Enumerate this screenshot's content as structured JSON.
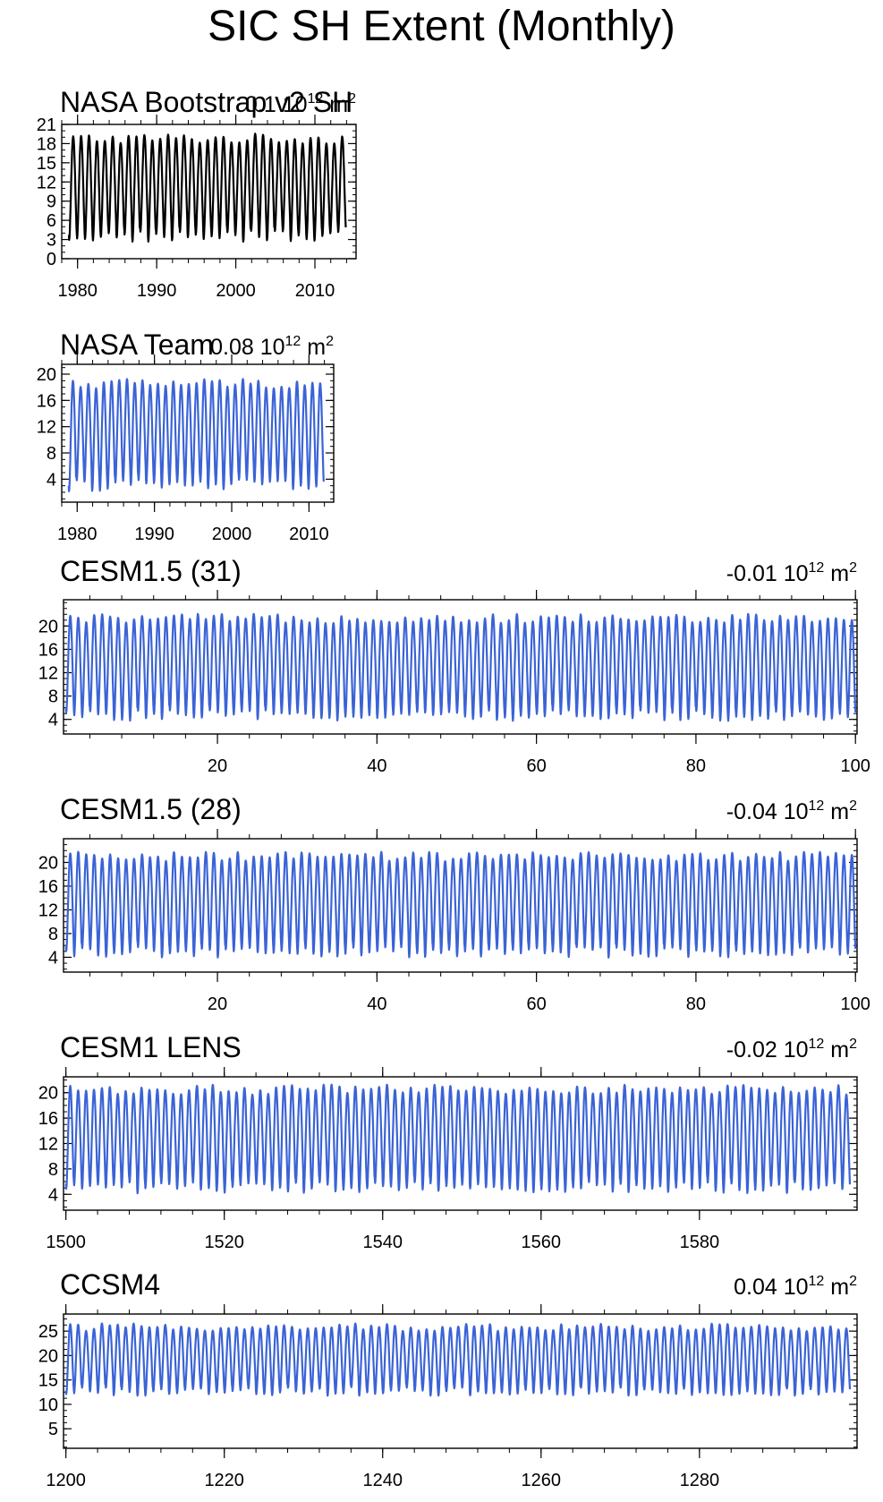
{
  "figure": {
    "title": "SIC SH Extent (Monthly)"
  },
  "chart_data": [
    {
      "type": "line",
      "title": "NASA Bootstrap v2 SH",
      "trend_value": "0.1",
      "trend_unit_base": "10",
      "trend_unit_exp": "12",
      "trend_unit_suffix": "m",
      "trend_unit_suffix_exp": "2",
      "color": "#000000",
      "xlim": [
        1978.0,
        2015.2
      ],
      "xticks": [
        1980,
        1990,
        2000,
        2010
      ],
      "ylim": [
        0,
        21
      ],
      "yticks": [
        0,
        3,
        6,
        9,
        12,
        15,
        18,
        21
      ],
      "series": [
        {
          "x_start": 1978.9,
          "years": 35,
          "max_mean": 18.8,
          "min_mean": 3.4
        }
      ]
    },
    {
      "type": "line",
      "title": "NASA Team",
      "trend_value": "0.08",
      "trend_unit_base": "10",
      "trend_unit_exp": "12",
      "trend_unit_suffix": "m",
      "trend_unit_suffix_exp": "2",
      "color": "#3b63d6",
      "xlim": [
        1978.0,
        2013.2
      ],
      "xticks": [
        1980,
        1990,
        2000,
        2010
      ],
      "ylim": [
        0.5,
        21.5
      ],
      "yticks": [
        4,
        8,
        12,
        16,
        20
      ],
      "series": [
        {
          "x_start": 1978.9,
          "years": 33,
          "max_mean": 18.6,
          "min_mean": 3.0
        }
      ]
    },
    {
      "type": "line",
      "title": "CESM1.5 (31)",
      "trend_value": "-0.01",
      "trend_unit_base": "10",
      "trend_unit_exp": "12",
      "trend_unit_suffix": "m",
      "trend_unit_suffix_exp": "2",
      "color": "#3b63d6",
      "xlim": [
        0.7,
        100.2
      ],
      "xticks": [
        20,
        40,
        60,
        80,
        100
      ],
      "ylim": [
        1.5,
        24.5
      ],
      "yticks": [
        4,
        8,
        12,
        16,
        20
      ],
      "series": [
        {
          "x_start": 1,
          "years": 99,
          "max_mean": 21.3,
          "min_mean": 4.6
        }
      ]
    },
    {
      "type": "line",
      "title": "CESM1.5 (28)",
      "trend_value": "-0.04",
      "trend_unit_base": "10",
      "trend_unit_exp": "12",
      "trend_unit_suffix": "m",
      "trend_unit_suffix_exp": "2",
      "color": "#3b63d6",
      "xlim": [
        0.7,
        100.2
      ],
      "xticks": [
        20,
        40,
        60,
        80,
        100
      ],
      "ylim": [
        1.5,
        24.0
      ],
      "yticks": [
        4,
        8,
        12,
        16,
        20
      ],
      "series": [
        {
          "x_start": 1,
          "years": 99,
          "max_mean": 21.0,
          "min_mean": 4.8
        }
      ]
    },
    {
      "type": "line",
      "title": "CESM1 LENS",
      "trend_value": "-0.02",
      "trend_unit_base": "10",
      "trend_unit_exp": "12",
      "trend_unit_suffix": "m",
      "trend_unit_suffix_exp": "2",
      "color": "#3b63d6",
      "xlim": [
        1499.7,
        1599.9
      ],
      "xticks": [
        1500,
        1520,
        1540,
        1560,
        1580
      ],
      "ylim": [
        1.5,
        22.5
      ],
      "yticks": [
        4,
        8,
        12,
        16,
        20
      ],
      "series": [
        {
          "x_start": 1500,
          "years": 99,
          "max_mean": 20.5,
          "min_mean": 5.0
        }
      ]
    },
    {
      "type": "line",
      "title": "CCSM4",
      "trend_value": "0.04",
      "trend_unit_base": "10",
      "trend_unit_exp": "12",
      "trend_unit_suffix": "m",
      "trend_unit_suffix_exp": "2",
      "color": "#3b63d6",
      "xlim": [
        1199.7,
        1299.9
      ],
      "xticks": [
        1200,
        1220,
        1240,
        1260,
        1280
      ],
      "ylim": [
        1.0,
        28.5
      ],
      "yticks": [
        5,
        10,
        15,
        20,
        25
      ],
      "series": [
        {
          "x_start": 1200,
          "years": 99,
          "max_mean": 25.8,
          "min_mean": 12.6
        }
      ]
    }
  ]
}
